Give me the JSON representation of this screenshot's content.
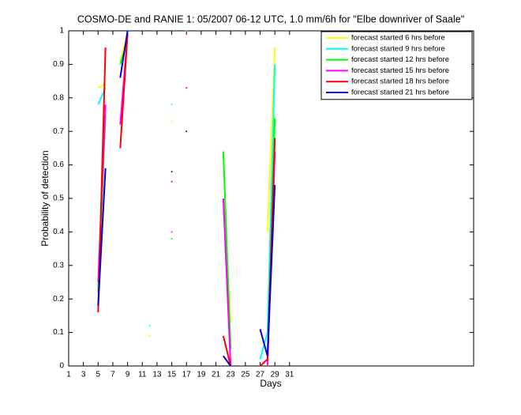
{
  "chart_data": {
    "type": "line",
    "title": "COSMO-DE and RANIE 1: 05/2007 06-12 UTC, 1.0 mm/6h for \"Elbe downriver of Saale\"",
    "x_label": "Days",
    "y_label": "Probability of detection",
    "x": [
      1,
      2,
      3,
      4,
      5,
      6,
      7,
      8,
      9,
      10,
      11,
      12,
      13,
      14,
      15,
      16,
      17,
      18,
      19,
      20,
      21,
      22,
      23,
      24,
      25,
      26,
      27,
      28,
      29,
      30,
      31
    ],
    "xlim": [
      1,
      56
    ],
    "xticks": [
      1,
      3,
      5,
      7,
      9,
      11,
      13,
      15,
      17,
      19,
      21,
      23,
      25,
      27,
      29,
      31
    ],
    "ylim": [
      0,
      1
    ],
    "yticks": [
      0,
      0.1,
      0.2,
      0.3,
      0.4,
      0.5,
      0.6,
      0.7,
      0.8,
      0.9,
      1
    ],
    "legend": "top-right",
    "series": [
      {
        "name": "forecast started 6 hrs before",
        "color": "#ffff00",
        "values": [
          null,
          null,
          null,
          null,
          0.83,
          0.84,
          null,
          0.91,
          0.99,
          null,
          null,
          0.09,
          null,
          null,
          0.73,
          null,
          0.99,
          null,
          null,
          null,
          null,
          0.5,
          0.13,
          null,
          null,
          null,
          null,
          0.4,
          0.95,
          null,
          null
        ]
      },
      {
        "name": "forecast started 9 hrs before",
        "color": "#00ffff",
        "values": [
          null,
          null,
          null,
          null,
          0.78,
          0.83,
          null,
          0.9,
          0.97,
          null,
          null,
          0.12,
          null,
          null,
          0.78,
          null,
          1.0,
          null,
          null,
          null,
          null,
          null,
          null,
          null,
          null,
          null,
          0.02,
          0.1,
          0.9,
          null,
          null
        ]
      },
      {
        "name": "forecast started 12 hrs before",
        "color": "#00ff00",
        "values": [
          null,
          null,
          null,
          null,
          0.22,
          0.75,
          null,
          0.9,
          0.97,
          null,
          null,
          null,
          null,
          null,
          0.38,
          null,
          1.0,
          null,
          null,
          null,
          null,
          0.64,
          0.05,
          null,
          null,
          null,
          null,
          0.0,
          0.74,
          null,
          null
        ]
      },
      {
        "name": "forecast started 15 hrs before",
        "color": "#ff00ff",
        "values": [
          null,
          null,
          null,
          null,
          0.25,
          0.78,
          null,
          0.72,
          0.99,
          null,
          null,
          null,
          null,
          null,
          0.4,
          null,
          0.99,
          null,
          null,
          null,
          null,
          0.5,
          0.0,
          null,
          null,
          null,
          null,
          0.0,
          0.64,
          null,
          null
        ]
      },
      {
        "name": "forecast started 18 hrs before",
        "color": "#ff0000",
        "values": [
          null,
          null,
          null,
          null,
          0.16,
          0.95,
          null,
          0.65,
          0.99,
          null,
          null,
          null,
          null,
          null,
          0.55,
          null,
          0.83,
          null,
          null,
          null,
          null,
          0.09,
          0.0,
          null,
          null,
          null,
          0.0,
          0.02,
          0.68,
          null,
          null
        ]
      },
      {
        "name": "forecast started 21 hrs before",
        "color": "#0000cc",
        "values": [
          null,
          null,
          null,
          null,
          0.18,
          0.59,
          null,
          0.86,
          1.0,
          null,
          null,
          null,
          null,
          null,
          0.58,
          null,
          0.7,
          null,
          null,
          null,
          null,
          0.03,
          0.0,
          null,
          null,
          null,
          0.11,
          0.03,
          0.54,
          null,
          null
        ]
      }
    ]
  }
}
